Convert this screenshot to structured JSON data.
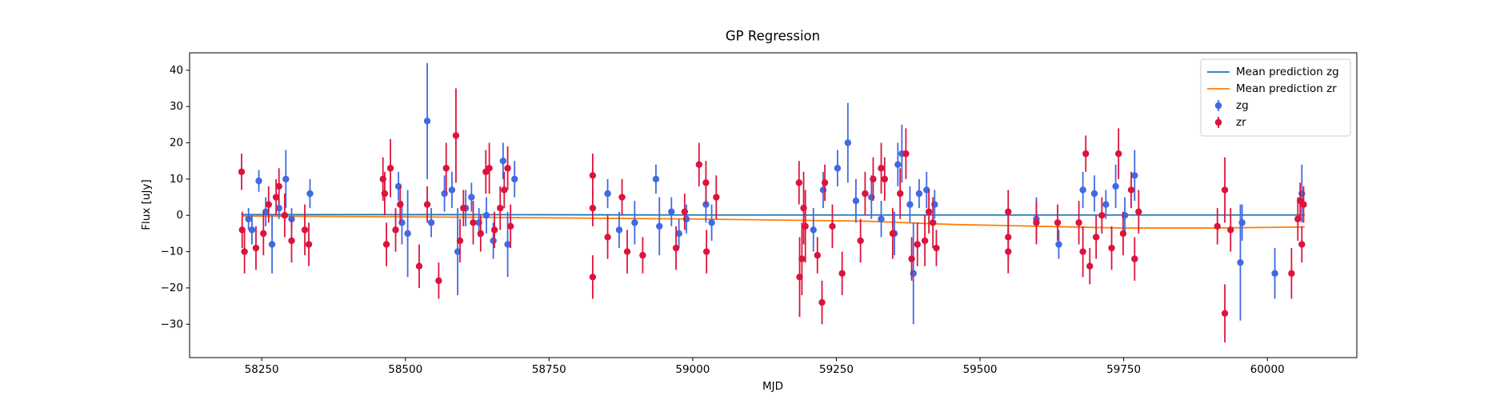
{
  "chart_data": {
    "type": "errorbar",
    "title": "GP Regression",
    "xlabel": "MJD",
    "ylabel": "Flux [uJy]",
    "xlim": [
      58124.5,
      60155.6
    ],
    "ylim": [
      -39.2,
      44.8
    ],
    "xticks": [
      58250,
      58500,
      58750,
      59000,
      59250,
      59500,
      59750,
      60000
    ],
    "yticks": [
      {
        "value": -30,
        "label": "−30"
      },
      {
        "value": -20,
        "label": "−20"
      },
      {
        "value": -10,
        "label": "−10"
      },
      0,
      10,
      20,
      30,
      40
    ],
    "legend": "upper right",
    "series": [
      {
        "name": "Mean prediction zg",
        "kind": "line",
        "color": "#1f77b4",
        "x": [
          58215,
          58600,
          59000,
          59400,
          59800,
          60065
        ],
        "values": [
          0.2,
          0.2,
          0.1,
          0.1,
          0.1,
          0.1
        ]
      },
      {
        "name": "Mean prediction zr",
        "kind": "line",
        "color": "#ff7f0e",
        "x": [
          58215,
          58600,
          59000,
          59300,
          59450,
          59600,
          59750,
          59900,
          60065
        ],
        "values": [
          -0.2,
          -0.5,
          -1.0,
          -1.6,
          -2.5,
          -3.0,
          -3.5,
          -3.5,
          -3.2
        ]
      },
      {
        "name": "zg",
        "kind": "errorbar",
        "color": "#4169e1",
        "x": [
          58227,
          58233,
          58245,
          58257,
          58268,
          58280,
          58292,
          58302,
          58334,
          58488,
          58494,
          58504,
          58538,
          58545,
          58568,
          58581,
          58591,
          58605,
          58615,
          58628,
          58641,
          58653,
          58670,
          58678,
          58690,
          58852,
          58872,
          58899,
          58936,
          58942,
          58963,
          58976,
          58989,
          59023,
          59033,
          59210,
          59227,
          59252,
          59270,
          59284,
          59311,
          59328,
          59351,
          59357,
          59364,
          59378,
          59384,
          59394,
          59407,
          59421,
          59598,
          59637,
          59679,
          59699,
          59719,
          59736,
          59752,
          59769,
          59953,
          59956,
          60013,
          60060
        ],
        "values": [
          -1,
          -4,
          9.5,
          1,
          -8,
          2,
          10,
          -1,
          6,
          8,
          -2,
          -5,
          26,
          -2,
          6,
          7,
          -10,
          2,
          5,
          -2,
          0,
          -7,
          15,
          -8,
          10,
          6,
          -4,
          -2,
          10,
          -3,
          1,
          -5,
          -1,
          3,
          -2,
          -4,
          7,
          13,
          20,
          4,
          5,
          -1,
          -5,
          14,
          17,
          3,
          -16,
          6,
          7,
          3,
          -1,
          -8,
          7,
          6,
          3,
          8,
          0,
          11,
          -13,
          -2,
          -16,
          6
        ],
        "errors": [
          3,
          4,
          3,
          4,
          8,
          3,
          8,
          3,
          4,
          4,
          6,
          12,
          16,
          4,
          5,
          5,
          12,
          5,
          4,
          4,
          5,
          5,
          5,
          9,
          5,
          4,
          5,
          6,
          4,
          8,
          4,
          4,
          4,
          5,
          5,
          6,
          5,
          5,
          11,
          6,
          6,
          5,
          6,
          6,
          8,
          5,
          14,
          4,
          5,
          4,
          6,
          4,
          5,
          5,
          4,
          6,
          5,
          7,
          16,
          5,
          7,
          8
        ]
      },
      {
        "name": "zr",
        "kind": "errorbar",
        "color": "#dc143c",
        "x": [
          58215,
          58216,
          58220,
          58240,
          58253,
          58262,
          58275,
          58280,
          58290,
          58302,
          58325,
          58332,
          58461,
          58464,
          58467,
          58474,
          58483,
          58491,
          58524,
          58538,
          58558,
          58571,
          58588,
          58595,
          58601,
          58618,
          58631,
          58640,
          58646,
          58655,
          58665,
          58672,
          58678,
          58683,
          58826,
          58826,
          58826,
          58852,
          58877,
          58886,
          58913,
          58971,
          58986,
          59011,
          59023,
          59024,
          59041,
          59185,
          59186,
          59190,
          59193,
          59196,
          59217,
          59225,
          59230,
          59243,
          59260,
          59292,
          59300,
          59314,
          59328,
          59334,
          59348,
          59361,
          59371,
          59381,
          59391,
          59404,
          59411,
          59418,
          59424,
          59549,
          59549,
          59549,
          59598,
          59635,
          59672,
          59679,
          59684,
          59691,
          59702,
          59712,
          59729,
          59741,
          59749,
          59763,
          59769,
          59776,
          59913,
          59926,
          59926,
          59936,
          60042,
          60053,
          60057,
          60060,
          60063
        ],
        "values": [
          12,
          -4,
          -10,
          -9,
          -5,
          3,
          5,
          8,
          0,
          -7,
          -4,
          -8,
          10,
          6,
          -8,
          13,
          -4,
          3,
          -14,
          3,
          -18,
          13,
          22,
          -7,
          2,
          -2,
          -5,
          12,
          13,
          -4,
          2,
          7,
          13,
          -3,
          11,
          -17,
          2,
          -6,
          5,
          -10,
          -11,
          -9,
          1,
          14,
          9,
          -10,
          5,
          9,
          -17,
          -12,
          2,
          -3,
          -11,
          -24,
          9,
          -3,
          -16,
          -7,
          6,
          10,
          13,
          10,
          -5,
          6,
          17,
          -12,
          -8,
          -7,
          1,
          -2,
          -9,
          1,
          -6,
          -10,
          -2,
          -2,
          -2,
          -10,
          17,
          -14,
          -6,
          0,
          -9,
          17,
          -5,
          7,
          -12,
          1,
          -3,
          7,
          -27,
          -4,
          -16,
          -1,
          4,
          -8,
          3
        ],
        "errors": [
          5,
          5,
          6,
          6,
          6,
          5,
          5,
          5,
          6,
          6,
          7,
          6,
          6,
          6,
          6,
          8,
          6,
          5,
          6,
          5,
          5,
          7,
          13,
          6,
          5,
          6,
          5,
          6,
          7,
          5,
          6,
          5,
          6,
          6,
          6,
          6,
          5,
          6,
          5,
          6,
          5,
          6,
          5,
          6,
          6,
          6,
          6,
          6,
          11,
          10,
          10,
          10,
          5,
          6,
          5,
          6,
          6,
          6,
          6,
          6,
          7,
          6,
          7,
          7,
          7,
          6,
          6,
          7,
          6,
          7,
          5,
          6,
          6,
          6,
          6,
          5,
          6,
          7,
          5,
          5,
          6,
          5,
          6,
          7,
          6,
          5,
          6,
          6,
          5,
          9,
          8,
          6,
          7,
          6,
          5,
          5,
          5
        ]
      }
    ]
  }
}
